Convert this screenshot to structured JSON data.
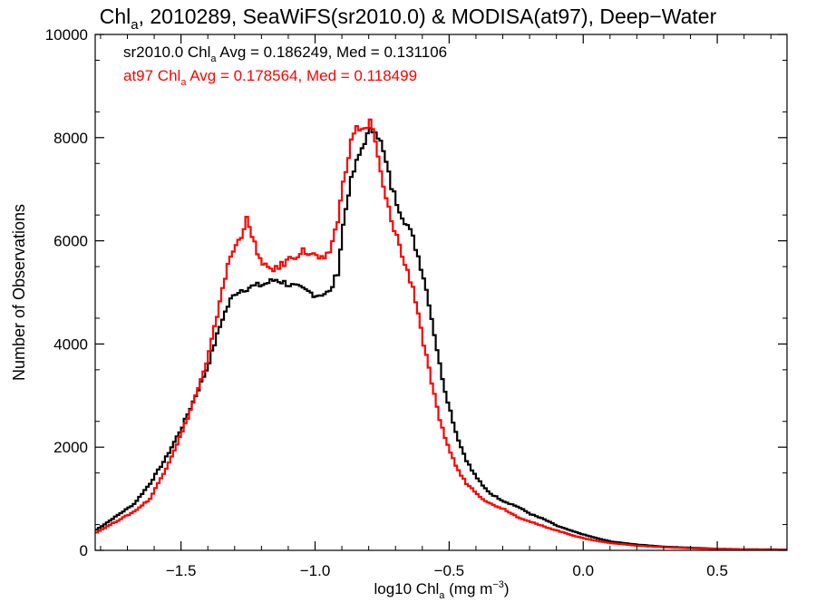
{
  "chart_data": {
    "type": "line",
    "step": true,
    "title": {
      "main": "Chl",
      "sub": "a",
      "rest": ", 2010289, SeaWiFS(sr2010.0) & MODISA(at97), Deep−Water"
    },
    "xlabel": {
      "main": "log10 Chl",
      "sub": "a",
      "rest": " (mg m",
      "sup": "−3",
      "close": ")"
    },
    "ylabel": "Number of Observations",
    "xlim": [
      -1.82,
      0.76
    ],
    "ylim": [
      0,
      10000
    ],
    "x_ticks": [
      {
        "value": -1.5,
        "label": "−1.5"
      },
      {
        "value": -1.0,
        "label": "−1.0"
      },
      {
        "value": -0.5,
        "label": "−0.5"
      },
      {
        "value": 0.0,
        "label": "0.0"
      },
      {
        "value": 0.5,
        "label": "0.5"
      }
    ],
    "y_ticks": [
      {
        "value": 0,
        "label": "0"
      },
      {
        "value": 2000,
        "label": "2000"
      },
      {
        "value": 4000,
        "label": "4000"
      },
      {
        "value": 6000,
        "label": "6000"
      },
      {
        "value": 8000,
        "label": "8000"
      },
      {
        "value": 10000,
        "label": "10000"
      }
    ],
    "grid": false,
    "annotations": [
      {
        "prefix": "sr2010.0 Chl",
        "sub": "a",
        "suffix": " Avg = 0.186249, Med = 0.131106",
        "color": "#000000"
      },
      {
        "prefix": "at97 Chl",
        "sub": "a",
        "suffix": " Avg = 0.178564, Med = 0.118499",
        "color": "#ff0000"
      }
    ],
    "series": [
      {
        "color": "#000000",
        "x": [
          -1.82,
          -1.75,
          -1.68,
          -1.62,
          -1.56,
          -1.5,
          -1.45,
          -1.41,
          -1.38,
          -1.35,
          -1.32,
          -1.3,
          -1.28,
          -1.25,
          -1.2,
          -1.15,
          -1.1,
          -1.05,
          -1.0,
          -0.95,
          -0.92,
          -0.9,
          -0.88,
          -0.86,
          -0.84,
          -0.82,
          -0.8,
          -0.78,
          -0.76,
          -0.74,
          -0.72,
          -0.7,
          -0.68,
          -0.66,
          -0.64,
          -0.62,
          -0.6,
          -0.58,
          -0.56,
          -0.54,
          -0.52,
          -0.5,
          -0.48,
          -0.46,
          -0.44,
          -0.42,
          -0.4,
          -0.38,
          -0.35,
          -0.3,
          -0.25,
          -0.2,
          -0.15,
          -0.1,
          -0.05,
          0.0,
          0.05,
          0.1,
          0.2,
          0.3,
          0.4,
          0.5,
          0.6,
          0.76
        ],
        "y": [
          400,
          650,
          900,
          1300,
          1800,
          2400,
          3000,
          3500,
          4000,
          4500,
          4850,
          5000,
          5050,
          5100,
          5150,
          5250,
          5150,
          5050,
          4950,
          5000,
          5400,
          6300,
          6950,
          7350,
          7650,
          7950,
          8100,
          8200,
          7900,
          7500,
          7050,
          6750,
          6500,
          6300,
          6050,
          5700,
          5300,
          4800,
          4200,
          3600,
          3100,
          2700,
          2300,
          2000,
          1750,
          1550,
          1400,
          1250,
          1100,
          950,
          850,
          700,
          600,
          470,
          380,
          300,
          230,
          170,
          110,
          70,
          50,
          30,
          20,
          15
        ]
      },
      {
        "color": "#ff0000",
        "x": [
          -1.82,
          -1.75,
          -1.68,
          -1.62,
          -1.56,
          -1.5,
          -1.45,
          -1.41,
          -1.38,
          -1.35,
          -1.32,
          -1.3,
          -1.28,
          -1.26,
          -1.25,
          -1.22,
          -1.2,
          -1.15,
          -1.1,
          -1.05,
          -1.0,
          -0.97,
          -0.95,
          -0.92,
          -0.9,
          -0.88,
          -0.86,
          -0.84,
          -0.82,
          -0.8,
          -0.78,
          -0.76,
          -0.74,
          -0.72,
          -0.7,
          -0.68,
          -0.66,
          -0.64,
          -0.62,
          -0.6,
          -0.58,
          -0.56,
          -0.54,
          -0.52,
          -0.5,
          -0.48,
          -0.46,
          -0.44,
          -0.42,
          -0.4,
          -0.38,
          -0.35,
          -0.3,
          -0.25,
          -0.2,
          -0.15,
          -0.1,
          -0.05,
          0.0,
          0.05,
          0.1,
          0.2,
          0.3,
          0.4,
          0.5,
          0.6,
          0.76
        ],
        "y": [
          350,
          550,
          750,
          1000,
          1600,
          2300,
          3000,
          3600,
          4300,
          5100,
          5700,
          5900,
          6100,
          6500,
          6200,
          5800,
          5500,
          5450,
          5650,
          5800,
          5700,
          5600,
          5800,
          6400,
          7100,
          7700,
          8100,
          8200,
          8150,
          8300,
          7900,
          7300,
          6800,
          6400,
          6100,
          5700,
          5400,
          5100,
          4600,
          4000,
          3500,
          3000,
          2500,
          2200,
          1900,
          1650,
          1450,
          1300,
          1200,
          1100,
          1000,
          900,
          800,
          650,
          550,
          460,
          380,
          300,
          230,
          180,
          140,
          90,
          60,
          40,
          25,
          15,
          10
        ]
      }
    ]
  }
}
